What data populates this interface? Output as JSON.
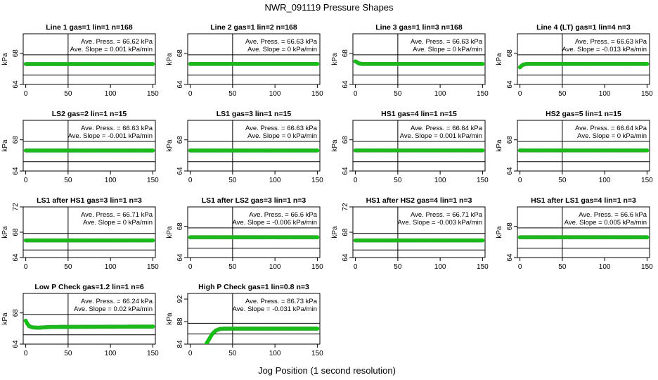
{
  "figure": {
    "title": "NWR_091119  Pressure Shapes",
    "xlabel": "Jog Position (1 second resolution)",
    "ylabel": "kPa",
    "xticks": [
      0,
      50,
      100,
      150
    ],
    "colors": {
      "points": "#00cc00",
      "point_edge": "#33aa33",
      "frame": "#000000",
      "text": "#000000"
    }
  },
  "chart_data": [
    {
      "type": "scatter",
      "title": "Line 1 gas=1 lin=1 n=168",
      "ave_press": "Ave. Press. = 66.62 kPa",
      "ave_slope": "Ave. Slope = 0.001 kPa/min",
      "xlim": [
        -3,
        153
      ],
      "ylim": [
        64,
        70.5
      ],
      "yticks": [
        64,
        68
      ],
      "hlines": [
        65.2,
        67.8
      ],
      "vline": 50,
      "series": [
        {
          "x": [
            0,
            150
          ],
          "y": [
            66.62,
            66.62
          ]
        }
      ]
    },
    {
      "type": "scatter",
      "title": "Line 2 gas=1 lin=2 n=168",
      "ave_press": "Ave. Press. = 66.63 kPa",
      "ave_slope": "Ave. Slope = 0 kPa/min",
      "xlim": [
        -3,
        153
      ],
      "ylim": [
        64,
        70.5
      ],
      "yticks": [
        64,
        68
      ],
      "hlines": [
        65.2,
        67.8
      ],
      "vline": 50,
      "series": [
        {
          "x": [
            0,
            150
          ],
          "y": [
            66.63,
            66.63
          ]
        }
      ]
    },
    {
      "type": "scatter",
      "title": "Line 3 gas=1 lin=3 n=168",
      "ave_press": "Ave. Press. = 66.63 kPa",
      "ave_slope": "Ave. Slope = 0 kPa/min",
      "xlim": [
        -3,
        153
      ],
      "ylim": [
        64,
        70.5
      ],
      "yticks": [
        64,
        68
      ],
      "hlines": [
        65.2,
        67.8
      ],
      "vline": 50,
      "series": [
        {
          "x": [
            0,
            2,
            4,
            8,
            150
          ],
          "y": [
            66.95,
            66.85,
            66.7,
            66.63,
            66.63
          ]
        }
      ]
    },
    {
      "type": "scatter",
      "title": "Line 4 (LT) gas=1 lin=4 n=3",
      "ave_press": "Ave. Press. = 66.63 kPa",
      "ave_slope": "Ave. Slope = -0.013 kPa/min",
      "xlim": [
        -3,
        153
      ],
      "ylim": [
        64,
        70.5
      ],
      "yticks": [
        64,
        68
      ],
      "hlines": [
        65.2,
        67.8
      ],
      "vline": 50,
      "series": [
        {
          "x": [
            0,
            2,
            4,
            8,
            150
          ],
          "y": [
            66.2,
            66.4,
            66.55,
            66.63,
            66.63
          ]
        }
      ]
    },
    {
      "type": "scatter",
      "title": "LS2 gas=2 lin=1 n=15",
      "ave_press": "Ave. Press. = 66.63 kPa",
      "ave_slope": "Ave. Slope = -0.001 kPa/min",
      "xlim": [
        -3,
        153
      ],
      "ylim": [
        64,
        70.5
      ],
      "yticks": [
        64,
        68
      ],
      "hlines": [
        65.2,
        67.8
      ],
      "vline": 50,
      "series": [
        {
          "x": [
            0,
            150
          ],
          "y": [
            66.63,
            66.63
          ]
        }
      ]
    },
    {
      "type": "scatter",
      "title": "LS1 gas=3 lin=1 n=15",
      "ave_press": "Ave. Press. = 66.63 kPa",
      "ave_slope": "Ave. Slope = 0 kPa/min",
      "xlim": [
        -3,
        153
      ],
      "ylim": [
        64,
        70.5
      ],
      "yticks": [
        64,
        68
      ],
      "hlines": [
        65.2,
        67.8
      ],
      "vline": 50,
      "series": [
        {
          "x": [
            0,
            150
          ],
          "y": [
            66.63,
            66.63
          ]
        }
      ]
    },
    {
      "type": "scatter",
      "title": "HS1 gas=4 lin=1 n=15",
      "ave_press": "Ave. Press. = 66.64 kPa",
      "ave_slope": "Ave. Slope = 0.001 kPa/min",
      "xlim": [
        -3,
        153
      ],
      "ylim": [
        64,
        70.5
      ],
      "yticks": [
        64,
        68
      ],
      "hlines": [
        65.2,
        67.8
      ],
      "vline": 50,
      "series": [
        {
          "x": [
            0,
            150
          ],
          "y": [
            66.64,
            66.64
          ]
        }
      ]
    },
    {
      "type": "scatter",
      "title": "HS2 gas=5 lin=1 n=15",
      "ave_press": "Ave. Press. = 66.64 kPa",
      "ave_slope": "Ave. Slope = 0 kPa/min",
      "xlim": [
        -3,
        153
      ],
      "ylim": [
        64,
        70.5
      ],
      "yticks": [
        64,
        68
      ],
      "hlines": [
        65.2,
        67.8
      ],
      "vline": 50,
      "series": [
        {
          "x": [
            0,
            150
          ],
          "y": [
            66.64,
            66.64
          ]
        }
      ]
    },
    {
      "type": "scatter",
      "title": "LS1 after HS1 gas=3 lin=1 n=3",
      "ave_press": "Ave. Press. = 66.71 kPa",
      "ave_slope": "Ave. Slope = 0 kPa/min",
      "xlim": [
        -3,
        153
      ],
      "ylim": [
        64,
        72
      ],
      "yticks": [
        64,
        68,
        72
      ],
      "hlines": [
        65.2,
        67.8
      ],
      "vline": 50,
      "series": [
        {
          "x": [
            0,
            150
          ],
          "y": [
            66.71,
            66.71
          ]
        }
      ]
    },
    {
      "type": "scatter",
      "title": "LS1 after LS2 gas=3 lin=1 n=3",
      "ave_press": "Ave. Press. = 66.6 kPa",
      "ave_slope": "Ave. Slope = -0.006 kPa/min",
      "xlim": [
        -3,
        153
      ],
      "ylim": [
        64,
        70.5
      ],
      "yticks": [
        64,
        68
      ],
      "hlines": [
        65.2,
        67.8
      ],
      "vline": 50,
      "series": [
        {
          "x": [
            0,
            150
          ],
          "y": [
            66.6,
            66.6
          ]
        }
      ]
    },
    {
      "type": "scatter",
      "title": "HS1 after HS2 gas=4 lin=1 n=3",
      "ave_press": "Ave. Press. = 66.71 kPa",
      "ave_slope": "Ave. Slope = -0.003 kPa/min",
      "xlim": [
        -3,
        153
      ],
      "ylim": [
        64,
        72
      ],
      "yticks": [
        64,
        68,
        72
      ],
      "hlines": [
        65.2,
        67.8
      ],
      "vline": 50,
      "series": [
        {
          "x": [
            0,
            150
          ],
          "y": [
            66.71,
            66.71
          ]
        }
      ]
    },
    {
      "type": "scatter",
      "title": "HS1 after LS1 gas=4 lin=1 n=3",
      "ave_press": "Ave. Press. = 66.6 kPa",
      "ave_slope": "Ave. Slope = 0.005 kPa/min",
      "xlim": [
        -3,
        153
      ],
      "ylim": [
        64,
        70.5
      ],
      "yticks": [
        64,
        68
      ],
      "hlines": [
        65.2,
        67.8
      ],
      "vline": 50,
      "series": [
        {
          "x": [
            0,
            150
          ],
          "y": [
            66.6,
            66.6
          ]
        }
      ]
    },
    {
      "type": "scatter",
      "title": "Low P Check gas=1.2 lin=1 n=6",
      "ave_press": "Ave. Press. = 66.24 kPa",
      "ave_slope": "Ave. Slope = 0.02 kPa/min",
      "xlim": [
        -3,
        153
      ],
      "ylim": [
        64,
        70.5
      ],
      "yticks": [
        64,
        68
      ],
      "hlines": [
        65.2,
        67.8
      ],
      "vline": 50,
      "series": [
        {
          "x": [
            0,
            2,
            4,
            8,
            14,
            30,
            150
          ],
          "y": [
            67.0,
            66.6,
            66.3,
            66.15,
            66.1,
            66.2,
            66.25
          ]
        }
      ]
    },
    {
      "type": "scatter",
      "title": "High P Check gas=1 lin=0.8 n=3",
      "ave_press": "Ave. Press. = 86.73 kPa",
      "ave_slope": "Ave. Slope = -0.031 kPa/min",
      "xlim": [
        -3,
        153
      ],
      "ylim": [
        84,
        93
      ],
      "yticks": [
        84,
        88,
        92
      ],
      "hlines": [
        85.8,
        87.7
      ],
      "vline": 50,
      "series": [
        {
          "x": [
            18,
            22,
            26,
            30,
            35,
            40,
            150
          ],
          "y": [
            83.8,
            84.8,
            85.8,
            86.4,
            86.7,
            86.75,
            86.75
          ]
        }
      ]
    }
  ]
}
